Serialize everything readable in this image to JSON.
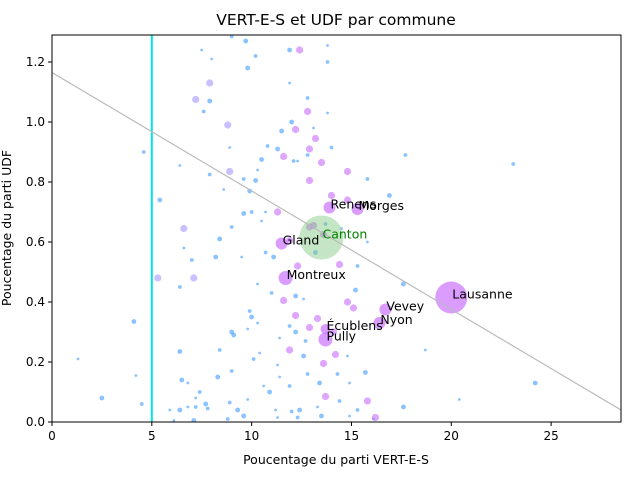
{
  "chart_data": {
    "type": "scatter",
    "title": "VERT-E-S et UDF par commune",
    "xlabel": "Poucentage du parti VERT-E-S",
    "ylabel": "Poucentage du parti UDF",
    "xlim": [
      0,
      28.5
    ],
    "ylim": [
      0,
      1.29
    ],
    "xticks": [
      0,
      5,
      10,
      15,
      20,
      25
    ],
    "yticks": [
      0.0,
      0.2,
      0.4,
      0.6,
      0.8,
      1.0,
      1.2
    ],
    "grid": false,
    "legend": "none",
    "colors": {
      "small_points": "#5aa9ff",
      "labeled_points": "#c25cff",
      "canton_point": "#7ec87e",
      "canton_text": "#008000",
      "vertical_line": "#00e5e5",
      "trend_line": "#bbbbbb"
    },
    "vertical_line_x": 5,
    "trend_line": {
      "x": [
        0,
        28.5
      ],
      "y": [
        1.165,
        0.04
      ]
    },
    "labeled_points": [
      {
        "label": "Lausanne",
        "x": 20.0,
        "y": 0.415,
        "size": 16
      },
      {
        "label": "Canton",
        "x": 13.5,
        "y": 0.615,
        "size": 22,
        "highlight": true
      },
      {
        "label": "Renens",
        "x": 13.9,
        "y": 0.715,
        "size": 6
      },
      {
        "label": "Morges",
        "x": 15.3,
        "y": 0.71,
        "size": 6
      },
      {
        "label": "Gland",
        "x": 11.5,
        "y": 0.595,
        "size": 6
      },
      {
        "label": "Montreux",
        "x": 11.7,
        "y": 0.48,
        "size": 7
      },
      {
        "label": "Vevey",
        "x": 16.7,
        "y": 0.375,
        "size": 6
      },
      {
        "label": "Nyon",
        "x": 16.4,
        "y": 0.33,
        "size": 6
      },
      {
        "label": "Écublens",
        "x": 13.7,
        "y": 0.31,
        "size": 5
      },
      {
        "label": "Pully",
        "x": 13.7,
        "y": 0.275,
        "size": 7
      }
    ],
    "medium_points": [
      [
        12.4,
        1.24
      ],
      [
        12.8,
        1.035
      ],
      [
        12.2,
        0.975
      ],
      [
        13.2,
        0.945
      ],
      [
        12.9,
        0.91
      ],
      [
        13.5,
        0.865
      ],
      [
        14.8,
        0.835
      ],
      [
        12.9,
        0.805
      ],
      [
        14.0,
        0.755
      ],
      [
        14.8,
        0.74
      ],
      [
        12.9,
        0.65
      ],
      [
        13.1,
        0.655
      ],
      [
        13.6,
        0.625
      ],
      [
        11.9,
        0.605
      ],
      [
        12.3,
        0.52
      ],
      [
        14.4,
        0.525
      ],
      [
        14.8,
        0.4
      ],
      [
        15.1,
        0.38
      ],
      [
        11.6,
        0.405
      ],
      [
        12.2,
        0.355
      ],
      [
        13.3,
        0.345
      ],
      [
        12.9,
        0.315
      ],
      [
        14.1,
        0.3
      ],
      [
        13.6,
        0.195
      ],
      [
        14.2,
        0.225
      ],
      [
        13.7,
        0.085
      ],
      [
        15.8,
        0.07
      ],
      [
        16.2,
        0.015
      ],
      [
        7.2,
        1.075
      ],
      [
        7.9,
        1.13
      ],
      [
        8.8,
        0.99
      ],
      [
        8.9,
        0.835
      ],
      [
        11.6,
        0.885
      ],
      [
        11.3,
        0.7
      ],
      [
        5.3,
        0.48
      ],
      [
        7.1,
        0.48
      ],
      [
        11.9,
        0.24
      ],
      [
        6.6,
        0.645
      ]
    ],
    "small_points": [
      [
        7.5,
        1.24
      ],
      [
        9.0,
        1.285
      ],
      [
        9.7,
        1.27
      ],
      [
        8.0,
        1.21
      ],
      [
        10.2,
        1.22
      ],
      [
        9.8,
        1.18
      ],
      [
        11.9,
        1.13
      ],
      [
        12.8,
        1.08
      ],
      [
        12.0,
        1.0
      ],
      [
        13.8,
        1.03
      ],
      [
        7.6,
        1.035
      ],
      [
        7.9,
        1.07
      ],
      [
        8.9,
        0.915
      ],
      [
        10.8,
        0.92
      ],
      [
        11.3,
        0.91
      ],
      [
        12.3,
        0.87
      ],
      [
        12.8,
        0.89
      ],
      [
        10.5,
        0.875
      ],
      [
        10.3,
        0.84
      ],
      [
        9.6,
        0.81
      ],
      [
        10.2,
        0.805
      ],
      [
        8.6,
        0.775
      ],
      [
        7.9,
        0.825
      ],
      [
        9.9,
        0.77
      ],
      [
        10.7,
        0.7
      ],
      [
        10.0,
        0.7
      ],
      [
        9.6,
        0.695
      ],
      [
        10.5,
        0.67
      ],
      [
        9.0,
        0.65
      ],
      [
        8.4,
        0.61
      ],
      [
        6.6,
        0.58
      ],
      [
        7.0,
        0.54
      ],
      [
        8.2,
        0.55
      ],
      [
        9.5,
        0.55
      ],
      [
        10.7,
        0.565
      ],
      [
        11.1,
        0.55
      ],
      [
        10.3,
        0.46
      ],
      [
        11.0,
        0.43
      ],
      [
        12.2,
        0.42
      ],
      [
        12.6,
        0.41
      ],
      [
        9.9,
        0.37
      ],
      [
        10.0,
        0.35
      ],
      [
        10.3,
        0.33
      ],
      [
        11.9,
        0.32
      ],
      [
        12.2,
        0.3
      ],
      [
        11.4,
        0.28
      ],
      [
        12.7,
        0.27
      ],
      [
        9.0,
        0.3
      ],
      [
        9.8,
        0.31
      ],
      [
        8.4,
        0.24
      ],
      [
        6.4,
        0.235
      ],
      [
        10.4,
        0.23
      ],
      [
        10.1,
        0.21
      ],
      [
        12.6,
        0.22
      ],
      [
        11.3,
        0.19
      ],
      [
        9.0,
        0.17
      ],
      [
        8.3,
        0.15
      ],
      [
        11.4,
        0.15
      ],
      [
        12.8,
        0.16
      ],
      [
        13.4,
        0.13
      ],
      [
        10.6,
        0.12
      ],
      [
        11.9,
        0.12
      ],
      [
        6.5,
        0.14
      ],
      [
        6.8,
        0.13
      ],
      [
        7.4,
        0.1
      ],
      [
        10.9,
        0.1
      ],
      [
        9.8,
        0.075
      ],
      [
        8.9,
        0.065
      ],
      [
        7.7,
        0.06
      ],
      [
        6.8,
        0.05
      ],
      [
        7.2,
        0.05
      ],
      [
        6.4,
        0.04
      ],
      [
        5.9,
        0.04
      ],
      [
        7.8,
        0.045
      ],
      [
        9.3,
        0.04
      ],
      [
        11.2,
        0.04
      ],
      [
        12.0,
        0.035
      ],
      [
        12.4,
        0.04
      ],
      [
        13.3,
        0.05
      ],
      [
        14.4,
        0.07
      ],
      [
        9.6,
        0.02
      ],
      [
        11.3,
        0.015
      ],
      [
        12.3,
        0.015
      ],
      [
        13.5,
        0.02
      ],
      [
        14.9,
        0.02
      ],
      [
        15.3,
        0.04
      ],
      [
        17.6,
        0.05
      ],
      [
        16.1,
        0.01
      ],
      [
        8.8,
        0.01
      ],
      [
        7.1,
        0.005
      ],
      [
        6.1,
        0.005
      ],
      [
        4.6,
        0.9
      ],
      [
        5.4,
        0.74
      ],
      [
        6.4,
        0.855
      ],
      [
        6.4,
        0.45
      ],
      [
        4.1,
        0.335
      ],
      [
        4.2,
        0.155
      ],
      [
        4.5,
        0.06
      ],
      [
        2.5,
        0.08
      ],
      [
        1.3,
        0.21
      ],
      [
        17.7,
        0.89
      ],
      [
        17.6,
        0.46
      ],
      [
        18.7,
        0.24
      ],
      [
        23.1,
        0.86
      ],
      [
        24.2,
        0.13
      ],
      [
        20.4,
        0.075
      ],
      [
        15.8,
        0.81
      ],
      [
        16.9,
        0.755
      ],
      [
        15.8,
        0.6
      ],
      [
        15.3,
        0.52
      ],
      [
        15.2,
        0.44
      ],
      [
        14.5,
        0.645
      ],
      [
        13.7,
        0.66
      ],
      [
        13.2,
        0.565
      ],
      [
        14.8,
        0.22
      ],
      [
        14.3,
        0.16
      ],
      [
        15.7,
        0.165
      ],
      [
        14.9,
        0.13
      ],
      [
        12.1,
        0.87
      ],
      [
        11.5,
        0.97
      ],
      [
        13.8,
        1.255
      ],
      [
        13.8,
        1.2
      ],
      [
        11.9,
        1.24
      ],
      [
        13.1,
        0.98
      ],
      [
        14.0,
        0.915
      ],
      [
        9.1,
        0.29
      ],
      [
        7.2,
        0.08
      ]
    ]
  }
}
